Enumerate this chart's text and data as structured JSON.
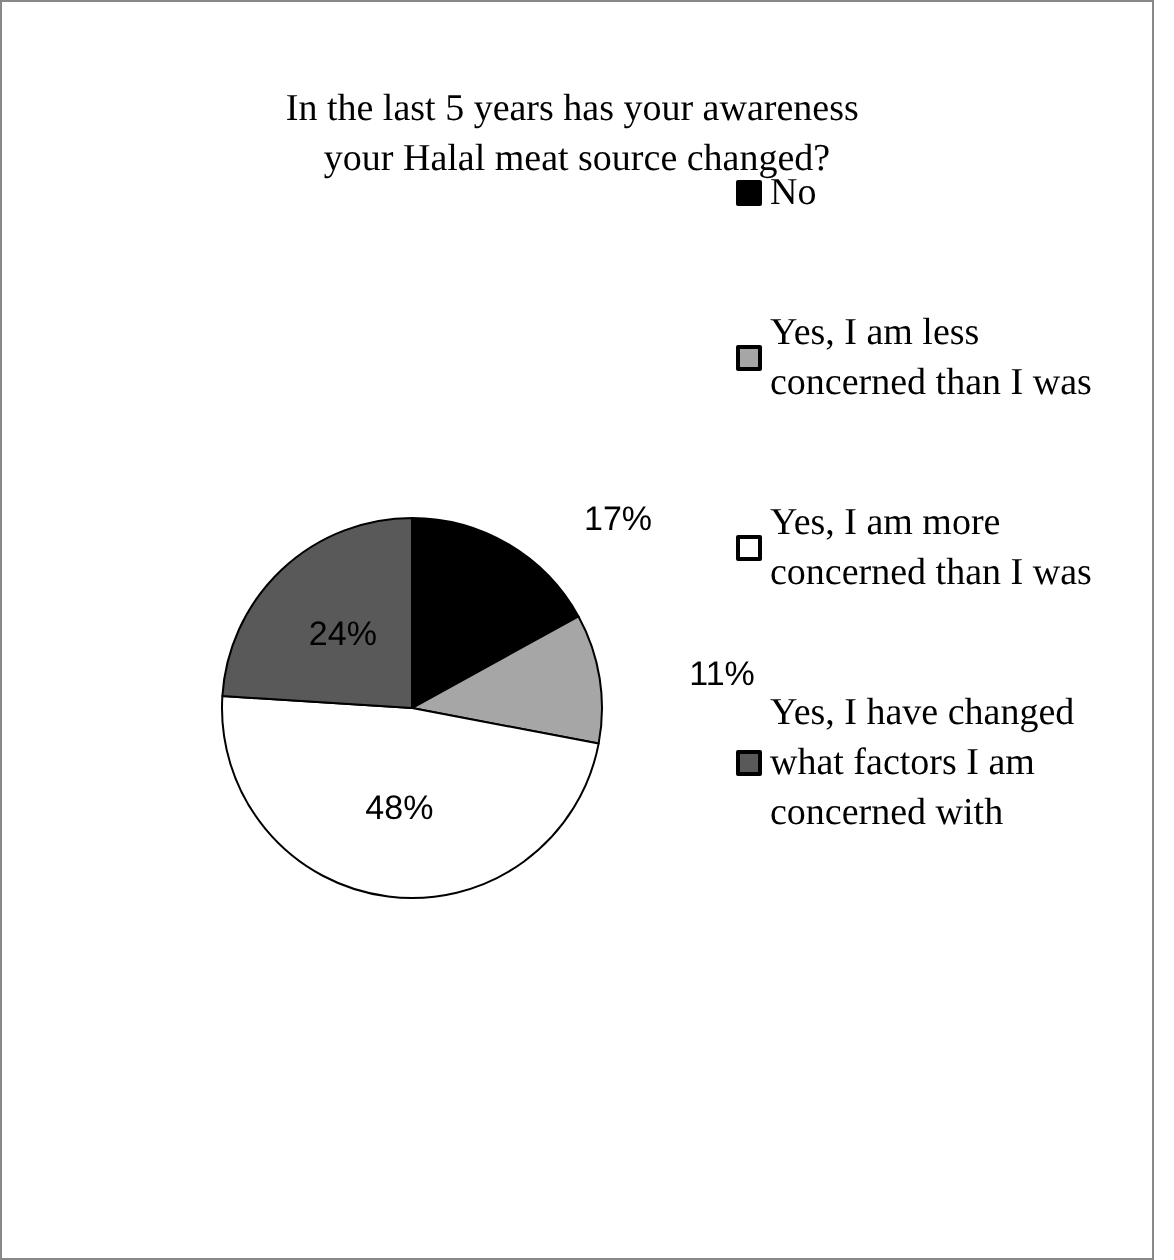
{
  "chart_data": {
    "type": "pie",
    "title": "In the last 5 years has your awareness your Halal meat source changed?",
    "categories": [
      "No",
      "Yes, I am less concerned than I was",
      "Yes, I am more concerned than I was",
      "Yes, I have changed what factors I am concerned with"
    ],
    "values": [
      17,
      11,
      48,
      24
    ],
    "colors": [
      "#000000",
      "#a6a6a6",
      "#ffffff",
      "#595959"
    ],
    "value_labels": [
      "17%",
      "11%",
      "48%",
      "24%"
    ],
    "legend": "right"
  }
}
